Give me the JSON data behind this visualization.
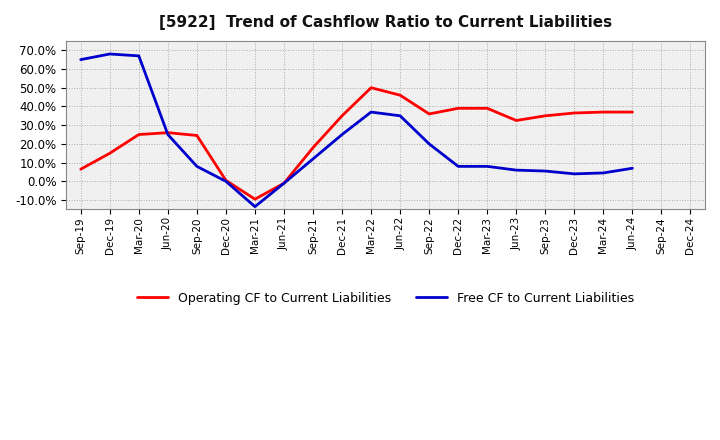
{
  "title": "[5922]  Trend of Cashflow Ratio to Current Liabilities",
  "x_labels": [
    "Sep-19",
    "Dec-19",
    "Mar-20",
    "Jun-20",
    "Sep-20",
    "Dec-20",
    "Mar-21",
    "Jun-21",
    "Sep-21",
    "Dec-21",
    "Mar-22",
    "Jun-22",
    "Sep-22",
    "Dec-22",
    "Mar-23",
    "Jun-23",
    "Sep-23",
    "Dec-23",
    "Mar-24",
    "Jun-24",
    "Sep-24",
    "Dec-24"
  ],
  "operating_cf": [
    6.5,
    15.0,
    25.0,
    26.0,
    24.5,
    0.5,
    -9.5,
    -1.0,
    18.0,
    35.0,
    50.0,
    46.0,
    36.0,
    39.0,
    39.0,
    32.5,
    35.0,
    36.5,
    37.0,
    37.0,
    null,
    null
  ],
  "free_cf": [
    65.0,
    68.0,
    67.0,
    25.0,
    8.0,
    0.0,
    -13.5,
    -1.0,
    12.0,
    25.0,
    37.0,
    35.0,
    20.0,
    8.0,
    8.0,
    6.0,
    5.5,
    4.0,
    4.5,
    7.0,
    null,
    null
  ],
  "operating_color": "#ff0000",
  "free_color": "#0000cc",
  "ylim": [
    -15,
    75
  ],
  "yticks": [
    -10,
    0,
    10,
    20,
    30,
    40,
    50,
    60,
    70
  ],
  "background_color": "#ffffff",
  "plot_bg_color": "#f0f0f0",
  "grid_color": "#aaaaaa",
  "legend_op": "Operating CF to Current Liabilities",
  "legend_free": "Free CF to Current Liabilities"
}
